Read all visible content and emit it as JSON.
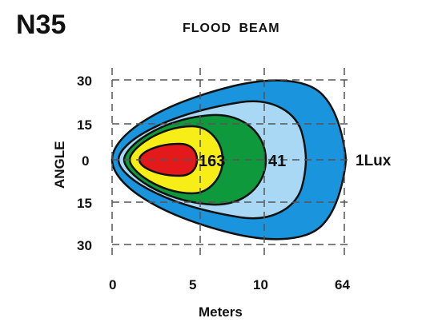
{
  "header": {
    "model": "N35",
    "beam_type": "FLOOD BEAM"
  },
  "colors": {
    "zone_1lux": "#1a94dc",
    "zone_41": "#a8d8f4",
    "zone_163": "#0e9a3c",
    "zone_yellow": "#f6ee16",
    "zone_red": "#e4191c",
    "outline": "#111111",
    "grid": "#555555"
  },
  "chart_data": {
    "type": "isolux",
    "title": "FLOOD BEAM",
    "xlabel": "Meters",
    "ylabel": "ANGLE",
    "x_ticks": [
      "0",
      "5",
      "10",
      "64"
    ],
    "y_ticks": [
      "30",
      "15",
      "0",
      "15",
      "30"
    ],
    "grid": true,
    "zone_labels": [
      "163",
      "41"
    ],
    "contour_label": "1Lux"
  }
}
